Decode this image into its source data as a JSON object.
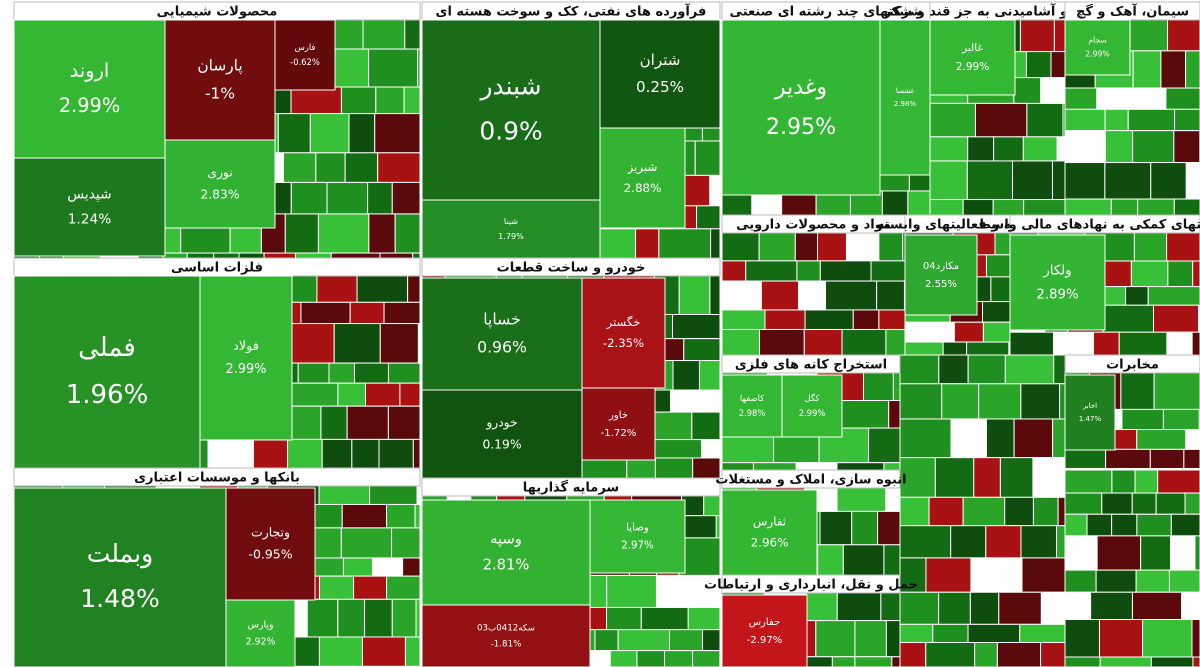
{
  "chart_data": {
    "type": "treemap",
    "groups": [
      {
        "name": "محصولات شیمیایی",
        "labels": [
          "اروند",
          "شپدیس",
          "پارسان",
          "نوری",
          "فارس"
        ],
        "values": [
          2.99,
          1.24,
          -1,
          2.83,
          -0.62
        ],
        "value_labels": [
          "2.99%",
          "1.24%",
          "-1%",
          "2.83%",
          "-0.62%"
        ]
      },
      {
        "name": "فرآورده های نفتی، کک و سوخت هسته ای",
        "labels": [
          "شبندر",
          "شتران",
          "شبریز",
          "شپنا"
        ],
        "values": [
          0.9,
          0.25,
          2.88,
          1.79
        ],
        "value_labels": [
          "0.9%",
          "0.25%",
          "2.88%",
          "1.79%"
        ]
      },
      {
        "name": "فلزات اساسی",
        "labels": [
          "فملی",
          "فولاد"
        ],
        "values": [
          1.96,
          2.99
        ],
        "value_labels": [
          "1.96%",
          "2.99%"
        ]
      },
      {
        "name": "خودرو و ساخت قطعات",
        "labels": [
          "خساپا",
          "خودرو",
          "خگستر",
          "خاور"
        ],
        "values": [
          0.96,
          0.19,
          -2.35,
          -1.72
        ],
        "value_labels": [
          "0.96%",
          "0.19%",
          "-2.35%",
          "-1.72%"
        ]
      },
      {
        "name": "بانکها و موسسات اعتباری",
        "labels": [
          "وبملت",
          "وتجارت",
          "وپارس"
        ],
        "values": [
          1.48,
          -0.95,
          2.92
        ],
        "value_labels": [
          "1.48%",
          "-0.95%",
          "2.92%"
        ]
      },
      {
        "name": "سرمایه گذاریها",
        "labels": [
          "وسپه",
          "وصایا",
          "سکه0412ب03"
        ],
        "values": [
          2.81,
          2.97,
          -1.81
        ],
        "value_labels": [
          "2.81%",
          "2.97%",
          "-1.81%"
        ]
      },
      {
        "name": "شرکتهای چند رشته ای صنعتی",
        "labels": [
          "وغدیر",
          "غشسا"
        ],
        "values": [
          2.95,
          2.98
        ],
        "value_labels": [
          "2.95%",
          "2.98%"
        ]
      },
      {
        "name": "غذایی و آشامیدنی به جز قند و شکر",
        "labels": [
          "غالبر"
        ],
        "values": [
          2.99
        ],
        "value_labels": [
          "2.99%"
        ]
      },
      {
        "name": "سیمان، آهک و گچ",
        "labels": [
          "سجام"
        ],
        "values": [
          2.99
        ],
        "value_labels": [
          "2.99%"
        ]
      },
      {
        "name": "مواد و محصولات دارویی",
        "labels": [],
        "values": [],
        "value_labels": []
      },
      {
        "name": "رایانه و فعالیتهای وابسته",
        "labels": [
          "مکارد04"
        ],
        "values": [
          2.55
        ],
        "value_labels": [
          "2.55%"
        ]
      },
      {
        "name": "فعالیتهای کمکی به نهادهای مالی واسط",
        "labels": [
          "ولکار"
        ],
        "values": [
          2.89
        ],
        "value_labels": [
          "2.89%"
        ]
      },
      {
        "name": "استخراج کانه های فلزی",
        "labels": [
          "کاصفها",
          "کگل"
        ],
        "values": [
          2.98,
          2.99
        ],
        "value_labels": [
          "2.98%",
          "2.99%"
        ]
      },
      {
        "name": "مخابرات",
        "labels": [
          "اخابر"
        ],
        "values": [
          1.47
        ],
        "value_labels": [
          "1.47%"
        ]
      },
      {
        "name": "انبوه سازی، املاک و مستغلات",
        "labels": [
          "ثفارس"
        ],
        "values": [
          2.96
        ],
        "value_labels": [
          "2.96%"
        ]
      },
      {
        "name": "حمل و نقل، انبارداری و ارتباطات",
        "labels": [
          "حفارس"
        ],
        "values": [
          -2.97
        ],
        "value_labels": [
          "-2.97%"
        ]
      }
    ]
  }
}
